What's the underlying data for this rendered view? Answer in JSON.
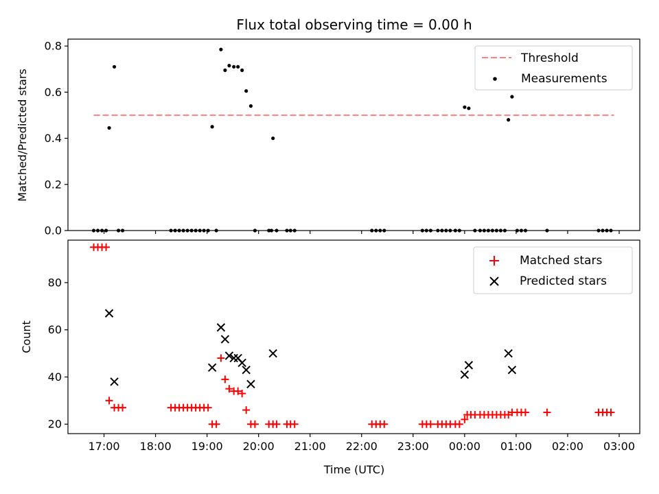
{
  "chart_data": [
    {
      "type": "scatter",
      "title": "Flux total observing time = 0.00 h",
      "xlabel": "",
      "ylabel": "Matched/Predicted stars",
      "xlim": [
        16.3,
        27.4
      ],
      "ylim": [
        0,
        0.83
      ],
      "yticks": [
        0.0,
        0.2,
        0.4,
        0.6,
        0.8
      ],
      "ytick_labels": [
        "0.0",
        "0.2",
        "0.4",
        "0.6",
        "0.8"
      ],
      "legend_position": "top-right",
      "threshold": {
        "name": "Threshold",
        "value": 0.5,
        "x_range": [
          16.8,
          26.9
        ],
        "color": "#ff7f7f",
        "style": "dashed"
      },
      "series": [
        {
          "name": "Measurements",
          "color": "#000000",
          "marker": "dot",
          "points": [
            [
              16.8,
              0
            ],
            [
              16.88,
              0
            ],
            [
              16.96,
              0
            ],
            [
              17.04,
              0
            ],
            [
              17.1,
              0.445
            ],
            [
              17.2,
              0.71
            ],
            [
              17.28,
              0
            ],
            [
              17.36,
              0
            ],
            [
              18.3,
              0
            ],
            [
              18.38,
              0
            ],
            [
              18.46,
              0
            ],
            [
              18.54,
              0
            ],
            [
              18.62,
              0
            ],
            [
              18.7,
              0
            ],
            [
              18.78,
              0
            ],
            [
              18.86,
              0
            ],
            [
              18.94,
              0
            ],
            [
              19.02,
              0
            ],
            [
              19.1,
              0.45
            ],
            [
              19.18,
              0
            ],
            [
              19.27,
              0.785
            ],
            [
              19.35,
              0.695
            ],
            [
              19.43,
              0.715
            ],
            [
              19.52,
              0.71
            ],
            [
              19.6,
              0.71
            ],
            [
              19.68,
              0.695
            ],
            [
              19.76,
              0.605
            ],
            [
              19.85,
              0.54
            ],
            [
              19.93,
              0
            ],
            [
              20.2,
              0
            ],
            [
              20.25,
              0
            ],
            [
              20.28,
              0.4
            ],
            [
              20.35,
              0
            ],
            [
              20.55,
              0
            ],
            [
              20.62,
              0
            ],
            [
              20.7,
              0
            ],
            [
              22.2,
              0
            ],
            [
              22.28,
              0
            ],
            [
              22.36,
              0
            ],
            [
              22.44,
              0
            ],
            [
              23.18,
              0
            ],
            [
              23.26,
              0
            ],
            [
              23.34,
              0
            ],
            [
              23.48,
              0
            ],
            [
              23.56,
              0
            ],
            [
              23.64,
              0
            ],
            [
              23.72,
              0
            ],
            [
              23.82,
              0
            ],
            [
              23.9,
              0
            ],
            [
              24.0,
              0.535
            ],
            [
              24.08,
              0.53
            ],
            [
              24.2,
              0
            ],
            [
              24.3,
              0
            ],
            [
              24.38,
              0
            ],
            [
              24.46,
              0
            ],
            [
              24.54,
              0
            ],
            [
              24.62,
              0
            ],
            [
              24.7,
              0
            ],
            [
              24.78,
              0
            ],
            [
              24.85,
              0.48
            ],
            [
              24.92,
              0.58
            ],
            [
              25.02,
              0
            ],
            [
              25.1,
              0
            ],
            [
              25.18,
              0
            ],
            [
              25.6,
              0
            ],
            [
              26.6,
              0
            ],
            [
              26.68,
              0
            ],
            [
              26.76,
              0
            ],
            [
              26.84,
              0
            ]
          ]
        }
      ]
    },
    {
      "type": "scatter",
      "title": "",
      "xlabel": "Time (UTC)",
      "ylabel": "Count",
      "xlim": [
        16.3,
        27.4
      ],
      "ylim": [
        16,
        98
      ],
      "yticks": [
        20,
        40,
        60,
        80
      ],
      "ytick_labels": [
        "20",
        "40",
        "60",
        "80"
      ],
      "xticks": [
        17,
        18,
        19,
        20,
        21,
        22,
        23,
        24,
        25,
        26,
        27
      ],
      "xtick_labels": [
        "17:00",
        "18:00",
        "19:00",
        "20:00",
        "21:00",
        "22:00",
        "23:00",
        "00:00",
        "01:00",
        "02:00",
        "03:00"
      ],
      "legend_position": "top-right",
      "series": [
        {
          "name": "Matched stars",
          "color": "#ff0000",
          "marker": "plus",
          "points": [
            [
              16.8,
              95
            ],
            [
              16.88,
              95
            ],
            [
              16.96,
              95
            ],
            [
              17.04,
              95
            ],
            [
              17.1,
              30
            ],
            [
              17.2,
              27
            ],
            [
              17.28,
              27
            ],
            [
              17.36,
              27
            ],
            [
              18.3,
              27
            ],
            [
              18.38,
              27
            ],
            [
              18.46,
              27
            ],
            [
              18.54,
              27
            ],
            [
              18.62,
              27
            ],
            [
              18.7,
              27
            ],
            [
              18.78,
              27
            ],
            [
              18.86,
              27
            ],
            [
              18.94,
              27
            ],
            [
              19.02,
              27
            ],
            [
              19.1,
              20
            ],
            [
              19.18,
              20
            ],
            [
              19.27,
              48
            ],
            [
              19.35,
              39
            ],
            [
              19.43,
              35
            ],
            [
              19.52,
              34
            ],
            [
              19.6,
              34
            ],
            [
              19.68,
              33
            ],
            [
              19.76,
              26
            ],
            [
              19.85,
              20
            ],
            [
              19.93,
              20
            ],
            [
              20.2,
              20
            ],
            [
              20.28,
              20
            ],
            [
              20.35,
              20
            ],
            [
              20.55,
              20
            ],
            [
              20.62,
              20
            ],
            [
              20.7,
              20
            ],
            [
              22.2,
              20
            ],
            [
              22.28,
              20
            ],
            [
              22.36,
              20
            ],
            [
              22.44,
              20
            ],
            [
              23.18,
              20
            ],
            [
              23.26,
              20
            ],
            [
              23.34,
              20
            ],
            [
              23.48,
              20
            ],
            [
              23.56,
              20
            ],
            [
              23.64,
              20
            ],
            [
              23.72,
              20
            ],
            [
              23.82,
              20
            ],
            [
              23.9,
              20
            ],
            [
              24.0,
              22
            ],
            [
              24.05,
              24
            ],
            [
              24.12,
              24
            ],
            [
              24.2,
              24
            ],
            [
              24.3,
              24
            ],
            [
              24.38,
              24
            ],
            [
              24.46,
              24
            ],
            [
              24.54,
              24
            ],
            [
              24.62,
              24
            ],
            [
              24.7,
              24
            ],
            [
              24.78,
              24
            ],
            [
              24.85,
              24
            ],
            [
              24.92,
              25
            ],
            [
              25.02,
              25
            ],
            [
              25.1,
              25
            ],
            [
              25.18,
              25
            ],
            [
              25.6,
              25
            ],
            [
              26.6,
              25
            ],
            [
              26.68,
              25
            ],
            [
              26.76,
              25
            ],
            [
              26.84,
              25
            ]
          ]
        },
        {
          "name": "Predicted stars",
          "color": "#000000",
          "marker": "x",
          "points": [
            [
              17.1,
              67
            ],
            [
              17.2,
              38
            ],
            [
              19.1,
              44
            ],
            [
              19.27,
              61
            ],
            [
              19.35,
              56
            ],
            [
              19.43,
              49
            ],
            [
              19.52,
              48
            ],
            [
              19.6,
              48
            ],
            [
              19.68,
              46
            ],
            [
              19.76,
              43
            ],
            [
              19.85,
              37
            ],
            [
              20.28,
              50
            ],
            [
              24.0,
              41
            ],
            [
              24.08,
              45
            ],
            [
              24.85,
              50
            ],
            [
              24.92,
              43
            ]
          ]
        }
      ]
    }
  ]
}
